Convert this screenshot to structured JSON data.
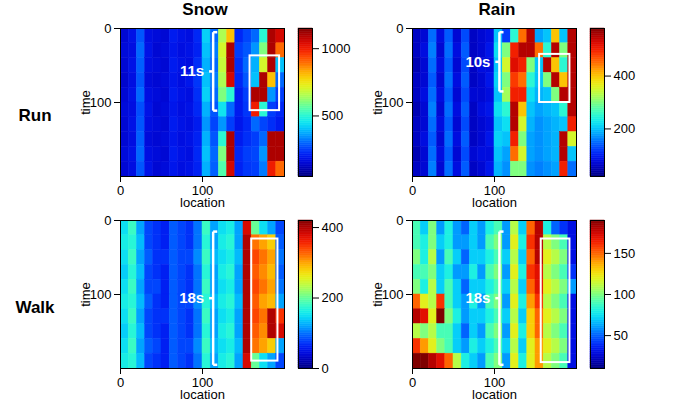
{
  "chart_data": {
    "type": "heatmap",
    "column_titles": [
      "Snow",
      "Rain"
    ],
    "row_titles": [
      "Run",
      "Walk"
    ],
    "panels": [
      {
        "x_label": "location",
        "y_label": "time",
        "xlim": [
          0,
          200
        ],
        "ylim": [
          0,
          200
        ],
        "xticks": [
          0,
          100
        ],
        "yticks": [
          0,
          100
        ],
        "x_edges": [
          0,
          10,
          20,
          30,
          40,
          50,
          60,
          70,
          80,
          90,
          100,
          110,
          120,
          130,
          140,
          150,
          160,
          170,
          180,
          190,
          200
        ],
        "y_edges": [
          0,
          20,
          40,
          60,
          80,
          100,
          120,
          140,
          160,
          180,
          200
        ],
        "values": [
          [
            150,
            180,
            280,
            170,
            160,
            150,
            200,
            180,
            170,
            220,
            420,
            300,
            650,
            800,
            220,
            260,
            300,
            500,
            1100,
            1050
          ],
          [
            160,
            170,
            300,
            180,
            150,
            160,
            190,
            170,
            180,
            210,
            400,
            320,
            700,
            1100,
            250,
            280,
            350,
            600,
            1100,
            900
          ],
          [
            150,
            180,
            290,
            170,
            160,
            150,
            200,
            180,
            170,
            230,
            380,
            300,
            680,
            1100,
            230,
            300,
            380,
            700,
            1100,
            400
          ],
          [
            140,
            170,
            280,
            160,
            150,
            160,
            190,
            170,
            190,
            240,
            400,
            320,
            650,
            1050,
            220,
            280,
            400,
            1100,
            800,
            300
          ],
          [
            150,
            180,
            300,
            170,
            160,
            150,
            200,
            180,
            170,
            230,
            420,
            300,
            600,
            500,
            200,
            250,
            1100,
            1100,
            350,
            250
          ],
          [
            160,
            170,
            270,
            180,
            150,
            160,
            190,
            170,
            180,
            220,
            380,
            280,
            450,
            300,
            200,
            240,
            1000,
            500,
            250,
            220
          ],
          [
            150,
            180,
            280,
            170,
            160,
            150,
            200,
            180,
            170,
            200,
            350,
            260,
            350,
            250,
            190,
            220,
            300,
            260,
            230,
            200
          ],
          [
            150,
            170,
            290,
            160,
            150,
            160,
            190,
            170,
            180,
            210,
            380,
            280,
            500,
            1100,
            200,
            230,
            250,
            300,
            1100,
            1100
          ],
          [
            160,
            180,
            300,
            170,
            160,
            150,
            200,
            180,
            170,
            220,
            400,
            300,
            600,
            1100,
            220,
            250,
            260,
            350,
            1100,
            1100
          ],
          [
            150,
            170,
            280,
            180,
            150,
            160,
            190,
            170,
            180,
            210,
            380,
            290,
            550,
            1050,
            210,
            240,
            250,
            320,
            1000,
            900
          ]
        ],
        "colorbar": {
          "range": [
            50,
            1150
          ],
          "ticks": [
            500,
            1000
          ]
        },
        "annotation": {
          "text": "11s",
          "x": 113,
          "y_range": [
            5,
            111
          ]
        },
        "box": {
          "x_range": [
            158,
            194
          ],
          "y_range": [
            37,
            111
          ]
        }
      },
      {
        "x_label": "location",
        "y_label": "time",
        "xlim": [
          0,
          200
        ],
        "ylim": [
          0,
          200
        ],
        "xticks": [
          0,
          100
        ],
        "yticks": [
          0,
          100
        ],
        "x_edges": [
          0,
          10,
          20,
          30,
          40,
          50,
          60,
          70,
          80,
          90,
          100,
          110,
          120,
          130,
          140,
          150,
          160,
          170,
          180,
          190,
          200
        ],
        "y_edges": [
          0,
          20,
          40,
          60,
          80,
          100,
          120,
          140,
          160,
          180,
          200
        ],
        "values": [
          [
            60,
            70,
            150,
            80,
            140,
            70,
            130,
            60,
            70,
            80,
            200,
            120,
            250,
            450,
            550,
            180,
            200,
            400,
            200,
            550
          ],
          [
            60,
            80,
            160,
            70,
            150,
            80,
            140,
            60,
            70,
            90,
            220,
            300,
            500,
            550,
            550,
            450,
            250,
            550,
            300,
            550
          ],
          [
            50,
            70,
            150,
            80,
            140,
            70,
            130,
            60,
            80,
            80,
            200,
            350,
            520,
            500,
            300,
            200,
            550,
            400,
            250,
            550
          ],
          [
            60,
            70,
            140,
            70,
            150,
            80,
            140,
            60,
            70,
            90,
            210,
            300,
            480,
            450,
            250,
            200,
            300,
            550,
            400,
            550
          ],
          [
            60,
            80,
            150,
            80,
            140,
            70,
            130,
            70,
            70,
            80,
            200,
            320,
            500,
            500,
            220,
            190,
            200,
            300,
            550,
            550
          ],
          [
            50,
            70,
            160,
            70,
            150,
            80,
            140,
            60,
            80,
            90,
            220,
            250,
            550,
            400,
            200,
            180,
            190,
            200,
            250,
            550
          ],
          [
            60,
            70,
            150,
            80,
            140,
            70,
            130,
            60,
            70,
            80,
            200,
            220,
            550,
            350,
            190,
            170,
            180,
            190,
            200,
            500
          ],
          [
            60,
            80,
            140,
            70,
            150,
            80,
            140,
            60,
            70,
            90,
            210,
            200,
            500,
            300,
            180,
            170,
            180,
            190,
            550,
            350
          ],
          [
            50,
            70,
            150,
            80,
            140,
            70,
            130,
            70,
            80,
            80,
            200,
            180,
            450,
            350,
            180,
            170,
            180,
            190,
            550,
            200
          ],
          [
            60,
            70,
            160,
            70,
            150,
            80,
            140,
            60,
            70,
            90,
            190,
            170,
            300,
            300,
            170,
            160,
            170,
            180,
            500,
            150
          ]
        ],
        "colorbar": {
          "range": [
            20,
            580
          ],
          "ticks": [
            200,
            400
          ]
        },
        "annotation": {
          "text": "10s",
          "x": 106,
          "y_range": [
            5,
            85
          ]
        },
        "box": {
          "x_range": [
            155,
            192
          ],
          "y_range": [
            35,
            100
          ]
        }
      },
      {
        "x_label": "location",
        "y_label": "time",
        "xlim": [
          0,
          200
        ],
        "ylim": [
          0,
          200
        ],
        "xticks": [
          0,
          100
        ],
        "yticks": [
          0,
          100
        ],
        "x_edges": [
          0,
          10,
          20,
          30,
          40,
          50,
          60,
          70,
          80,
          90,
          100,
          110,
          120,
          130,
          140,
          150,
          160,
          170,
          180,
          190,
          200
        ],
        "y_edges": [
          0,
          20,
          40,
          60,
          80,
          100,
          120,
          140,
          160,
          180,
          200
        ],
        "values": [
          [
            150,
            180,
            120,
            80,
            70,
            60,
            90,
            80,
            70,
            100,
            180,
            120,
            150,
            160,
            120,
            380,
            200,
            150,
            120,
            80
          ],
          [
            160,
            170,
            130,
            80,
            70,
            60,
            90,
            80,
            70,
            100,
            170,
            120,
            160,
            170,
            120,
            400,
            320,
            300,
            280,
            90
          ],
          [
            150,
            180,
            120,
            90,
            70,
            70,
            90,
            80,
            80,
            110,
            180,
            130,
            150,
            160,
            130,
            400,
            340,
            320,
            300,
            100
          ],
          [
            140,
            170,
            130,
            80,
            70,
            60,
            90,
            80,
            70,
            100,
            170,
            120,
            160,
            170,
            120,
            400,
            330,
            310,
            290,
            90
          ],
          [
            150,
            180,
            120,
            80,
            80,
            60,
            90,
            80,
            70,
            100,
            180,
            120,
            150,
            160,
            120,
            400,
            340,
            320,
            300,
            100
          ],
          [
            160,
            170,
            130,
            90,
            70,
            60,
            90,
            80,
            80,
            110,
            170,
            130,
            160,
            170,
            130,
            400,
            330,
            300,
            290,
            120
          ],
          [
            150,
            180,
            120,
            80,
            70,
            70,
            90,
            80,
            70,
            100,
            180,
            120,
            150,
            160,
            120,
            400,
            340,
            320,
            400,
            350
          ],
          [
            140,
            170,
            130,
            80,
            70,
            60,
            90,
            80,
            70,
            100,
            170,
            120,
            160,
            170,
            120,
            400,
            330,
            310,
            400,
            380
          ],
          [
            150,
            180,
            120,
            90,
            80,
            60,
            90,
            80,
            80,
            110,
            180,
            130,
            150,
            160,
            130,
            400,
            320,
            300,
            280,
            120
          ],
          [
            160,
            170,
            130,
            80,
            70,
            60,
            90,
            80,
            70,
            100,
            170,
            120,
            160,
            170,
            120,
            380,
            200,
            150,
            120,
            80
          ]
        ],
        "colorbar": {
          "range": [
            0,
            420
          ],
          "ticks": [
            0,
            200,
            400
          ]
        },
        "annotation": {
          "text": "18s",
          "x": 113,
          "y_range": [
            15,
            195
          ]
        },
        "box": {
          "x_range": [
            160,
            192
          ],
          "y_range": [
            25,
            190
          ]
        }
      },
      {
        "x_label": "location",
        "y_label": "time",
        "xlim": [
          0,
          200
        ],
        "ylim": [
          0,
          200
        ],
        "xticks": [
          0,
          100
        ],
        "yticks": [
          0,
          100
        ],
        "x_edges": [
          0,
          10,
          20,
          30,
          40,
          50,
          60,
          70,
          80,
          90,
          100,
          110,
          120,
          130,
          140,
          150,
          160,
          170,
          180,
          190,
          200
        ],
        "y_edges": [
          0,
          20,
          40,
          60,
          80,
          100,
          120,
          140,
          160,
          180,
          200
        ],
        "values": [
          [
            90,
            70,
            100,
            60,
            80,
            60,
            50,
            70,
            60,
            80,
            90,
            60,
            110,
            70,
            150,
            180,
            80,
            50,
            40,
            30
          ],
          [
            90,
            80,
            100,
            70,
            80,
            60,
            60,
            70,
            60,
            90,
            100,
            60,
            120,
            80,
            160,
            180,
            110,
            100,
            90,
            30
          ],
          [
            100,
            80,
            110,
            60,
            90,
            70,
            50,
            70,
            70,
            80,
            90,
            70,
            110,
            70,
            150,
            180,
            120,
            110,
            100,
            30
          ],
          [
            90,
            90,
            100,
            70,
            80,
            60,
            60,
            80,
            60,
            90,
            100,
            60,
            120,
            80,
            160,
            170,
            110,
            100,
            90,
            40
          ],
          [
            100,
            80,
            110,
            70,
            90,
            70,
            50,
            70,
            70,
            80,
            90,
            70,
            110,
            70,
            150,
            170,
            120,
            110,
            100,
            60
          ],
          [
            150,
            120,
            110,
            160,
            90,
            70,
            60,
            80,
            60,
            90,
            100,
            60,
            120,
            80,
            140,
            160,
            110,
            100,
            90,
            30
          ],
          [
            180,
            170,
            120,
            190,
            100,
            80,
            60,
            70,
            70,
            80,
            90,
            70,
            110,
            70,
            130,
            150,
            120,
            110,
            100,
            30
          ],
          [
            110,
            100,
            110,
            90,
            90,
            70,
            50,
            70,
            60,
            90,
            100,
            60,
            120,
            80,
            130,
            150,
            110,
            100,
            90,
            30
          ],
          [
            160,
            140,
            120,
            100,
            90,
            70,
            60,
            80,
            70,
            80,
            90,
            70,
            110,
            70,
            120,
            140,
            120,
            110,
            100,
            30
          ],
          [
            190,
            190,
            180,
            170,
            150,
            110,
            80,
            70,
            60,
            90,
            100,
            60,
            120,
            80,
            120,
            140,
            110,
            100,
            90,
            30
          ]
        ],
        "colorbar": {
          "range": [
            10,
            190
          ],
          "ticks": [
            50,
            100,
            150
          ]
        },
        "annotation": {
          "text": "18s",
          "x": 106,
          "y_range": [
            15,
            195
          ]
        },
        "box": {
          "x_range": [
            157,
            192
          ],
          "y_range": [
            25,
            192
          ]
        }
      }
    ]
  }
}
